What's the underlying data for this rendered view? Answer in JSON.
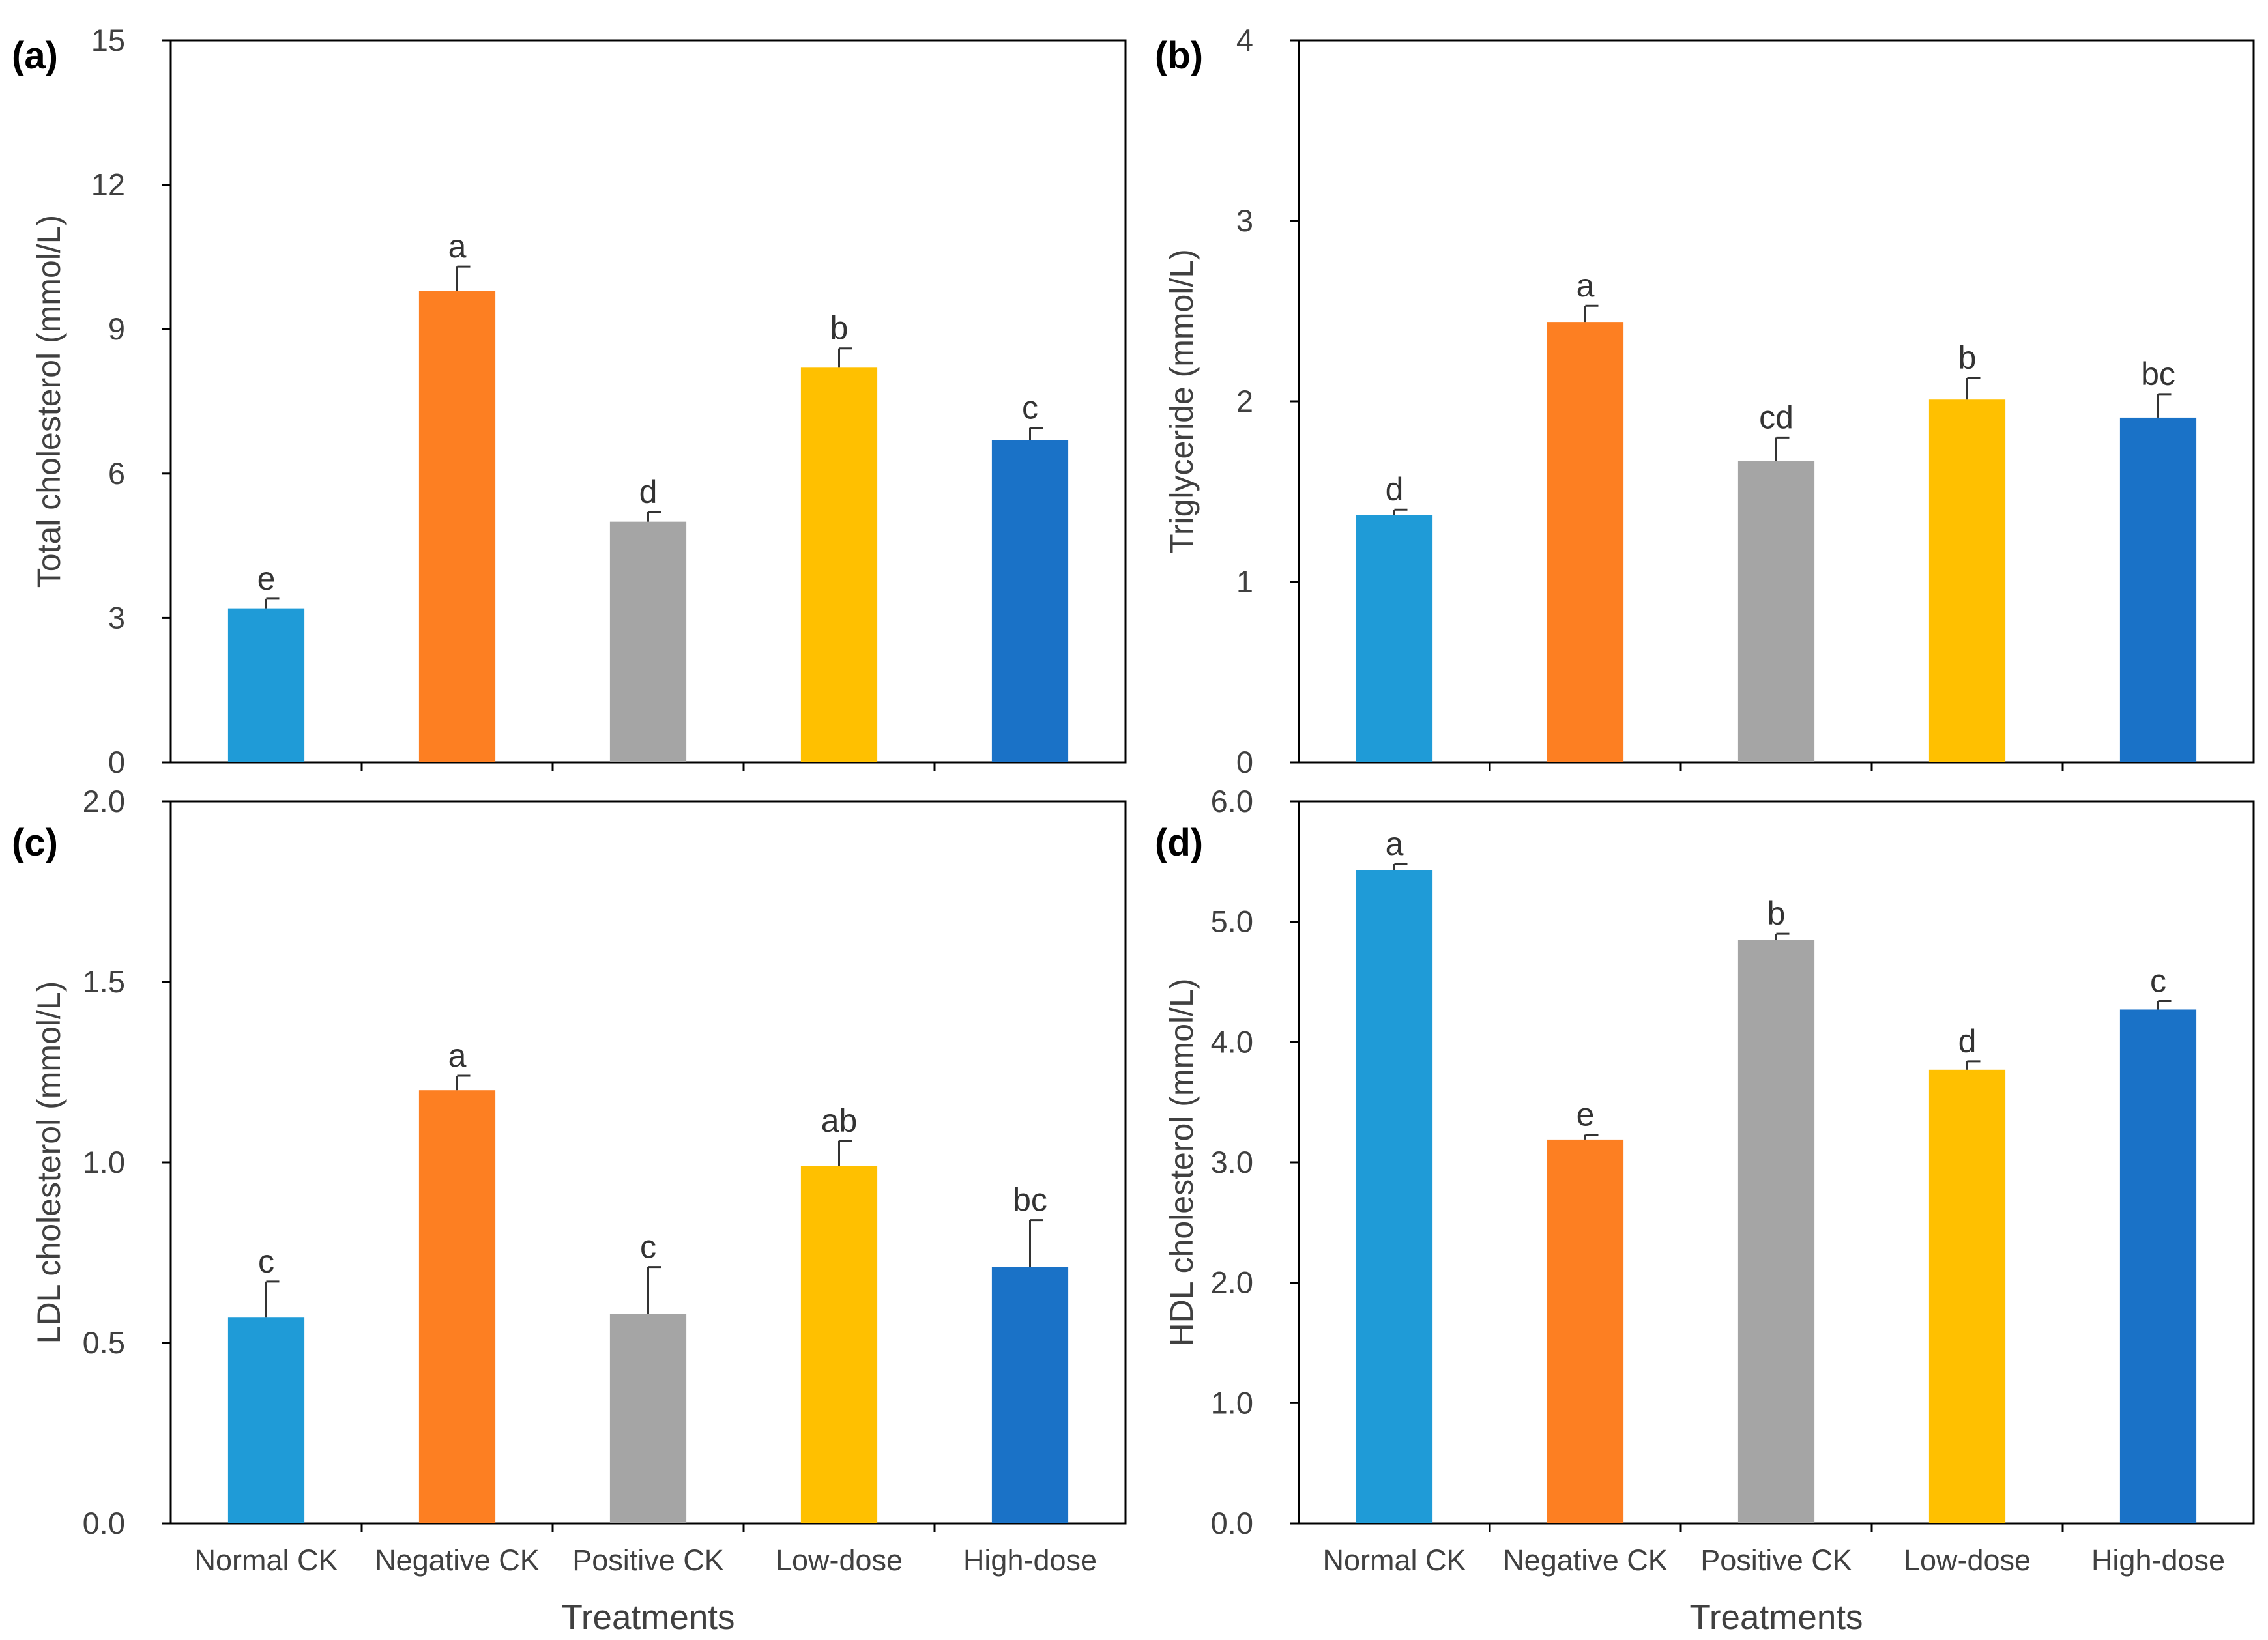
{
  "chart_data": [
    {
      "type": "bar",
      "panel": "(a)",
      "categories": [
        "Normal CK",
        "Negative CK",
        "Positive CK",
        "Low-dose",
        "High-dose"
      ],
      "values": [
        3.2,
        9.8,
        5.0,
        8.2,
        6.7
      ],
      "errors": [
        0.2,
        0.5,
        0.2,
        0.4,
        0.25
      ],
      "letters": [
        "e",
        "a",
        "d",
        "b",
        "c"
      ],
      "colors": [
        "#1f9bd7",
        "#fd7f22",
        "#a5a5a5",
        "#ffc000",
        "#1a72c7"
      ],
      "ylabel": "Total cholesterol (mmol/L)",
      "xlabel": "",
      "ylim": [
        0,
        15
      ],
      "yticks": [
        0,
        3,
        6,
        9,
        12,
        15
      ],
      "ytick_labels": [
        "0",
        "3",
        "6",
        "9",
        "12",
        "15"
      ],
      "show_category_labels": false
    },
    {
      "type": "bar",
      "panel": "(b)",
      "categories": [
        "Normal CK",
        "Negative CK",
        "Positive CK",
        "Low-dose",
        "High-dose"
      ],
      "values": [
        1.37,
        2.44,
        1.67,
        2.01,
        1.91
      ],
      "errors": [
        0.03,
        0.09,
        0.13,
        0.12,
        0.13
      ],
      "letters": [
        "d",
        "a",
        "cd",
        "b",
        "bc"
      ],
      "colors": [
        "#1f9bd7",
        "#fd7f22",
        "#a5a5a5",
        "#ffc000",
        "#1a72c7"
      ],
      "ylabel": "Triglyceride (mmol/L)",
      "xlabel": "",
      "ylim": [
        0,
        4
      ],
      "yticks": [
        0,
        1,
        2,
        3,
        4
      ],
      "ytick_labels": [
        "0",
        "1",
        "2",
        "3",
        "4"
      ],
      "show_category_labels": false
    },
    {
      "type": "bar",
      "panel": "(c)",
      "categories": [
        "Normal CK",
        "Negative CK",
        "Positive CK",
        "Low-dose",
        "High-dose"
      ],
      "values": [
        0.57,
        1.2,
        0.58,
        0.99,
        0.71
      ],
      "errors": [
        0.1,
        0.04,
        0.13,
        0.07,
        0.13
      ],
      "letters": [
        "c",
        "a",
        "c",
        "ab",
        "bc"
      ],
      "colors": [
        "#1f9bd7",
        "#fd7f22",
        "#a5a5a5",
        "#ffc000",
        "#1a72c7"
      ],
      "ylabel": "LDL cholesterol (mmol/L)",
      "xlabel": "Treatments",
      "ylim": [
        0,
        2.0
      ],
      "yticks": [
        0,
        0.5,
        1.0,
        1.5,
        2.0
      ],
      "ytick_labels": [
        "0.0",
        "0.5",
        "1.0",
        "1.5",
        "2.0"
      ],
      "show_category_labels": true
    },
    {
      "type": "bar",
      "panel": "(d)",
      "categories": [
        "Normal CK",
        "Negative CK",
        "Positive CK",
        "Low-dose",
        "High-dose"
      ],
      "values": [
        5.43,
        3.19,
        4.85,
        3.77,
        4.27
      ],
      "errors": [
        0.05,
        0.04,
        0.05,
        0.07,
        0.07
      ],
      "letters": [
        "a",
        "e",
        "b",
        "d",
        "c"
      ],
      "colors": [
        "#1f9bd7",
        "#fd7f22",
        "#a5a5a5",
        "#ffc000",
        "#1a72c7"
      ],
      "ylabel": "HDL cholesterol (mmol/L)",
      "xlabel": "Treatments",
      "ylim": [
        0,
        6.0
      ],
      "yticks": [
        0,
        1.0,
        2.0,
        3.0,
        4.0,
        5.0,
        6.0
      ],
      "ytick_labels": [
        "0.0",
        "1.0",
        "2.0",
        "3.0",
        "4.0",
        "5.0",
        "6.0"
      ],
      "show_category_labels": true
    }
  ]
}
